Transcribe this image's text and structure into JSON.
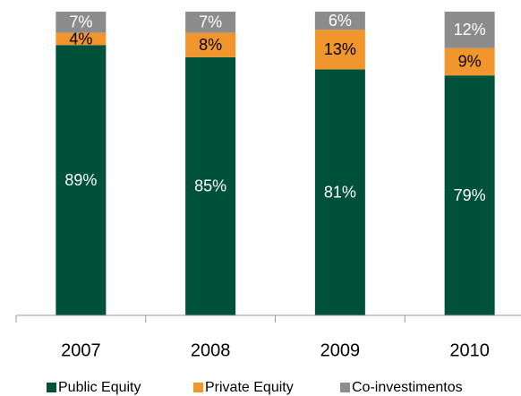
{
  "chart_data": {
    "type": "stacked_bar",
    "categories": [
      "2007",
      "2008",
      "2009",
      "2010"
    ],
    "series": [
      {
        "name": "Public Equity",
        "color": "#00513a",
        "values": [
          89,
          85,
          81,
          79
        ],
        "value_labels": [
          "89%",
          "85%",
          "81%",
          "79%"
        ]
      },
      {
        "name": "Private Equity",
        "color": "#f0962c",
        "values": [
          4,
          8,
          13,
          9
        ],
        "value_labels": [
          "4%",
          "8%",
          "13%",
          "9%"
        ]
      },
      {
        "name": "Co-investimentos",
        "color": "#8c8c8c",
        "values": [
          7,
          7,
          6,
          12
        ],
        "value_labels": [
          "7%",
          "7%",
          "6%",
          "12%"
        ]
      }
    ],
    "legend": "bottom"
  }
}
